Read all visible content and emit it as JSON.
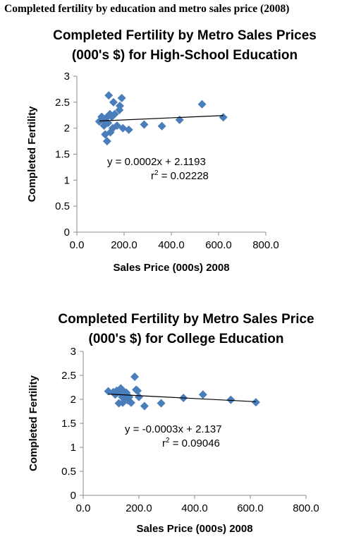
{
  "page_title": "Completed fertility by education and metro sales price (2008)",
  "chart_data": [
    {
      "type": "scatter",
      "title_lines": [
        "Completed Fertility by Metro Sales Prices",
        "(000's $) for High-School Education"
      ],
      "xlabel": "Sales Price (000s) 2008",
      "ylabel": "Completed Fertility",
      "xlim": [
        0,
        800
      ],
      "ylim": [
        0,
        3
      ],
      "x_ticks": [
        "0.0",
        "200.0",
        "400.0",
        "600.0",
        "800.0"
      ],
      "y_ticks": [
        "0",
        "0.5",
        "1",
        "1.5",
        "2",
        "2.5",
        "3"
      ],
      "marker_color": "#4a7ebb",
      "points": [
        {
          "x": 95,
          "y": 2.13
        },
        {
          "x": 105,
          "y": 2.22
        },
        {
          "x": 110,
          "y": 2.16
        },
        {
          "x": 115,
          "y": 2.05
        },
        {
          "x": 120,
          "y": 1.88
        },
        {
          "x": 125,
          "y": 2.2
        },
        {
          "x": 128,
          "y": 1.75
        },
        {
          "x": 132,
          "y": 2.1
        },
        {
          "x": 135,
          "y": 2.63
        },
        {
          "x": 140,
          "y": 2.27
        },
        {
          "x": 142,
          "y": 1.92
        },
        {
          "x": 148,
          "y": 2.22
        },
        {
          "x": 152,
          "y": 2.0
        },
        {
          "x": 155,
          "y": 2.5
        },
        {
          "x": 160,
          "y": 2.27
        },
        {
          "x": 170,
          "y": 2.05
        },
        {
          "x": 180,
          "y": 2.35
        },
        {
          "x": 182,
          "y": 2.43
        },
        {
          "x": 190,
          "y": 2.58
        },
        {
          "x": 195,
          "y": 2.0
        },
        {
          "x": 220,
          "y": 1.97
        },
        {
          "x": 285,
          "y": 2.07
        },
        {
          "x": 360,
          "y": 2.04
        },
        {
          "x": 435,
          "y": 2.16
        },
        {
          "x": 530,
          "y": 2.46
        },
        {
          "x": 620,
          "y": 2.21
        }
      ],
      "trendline": {
        "slope": 0.0002,
        "intercept": 2.1193,
        "x_range": [
          95,
          620
        ]
      },
      "equation_text": "y = 0.0002x + 2.1193",
      "r2_prefix": "r",
      "r2_exp": "2",
      "r2_value": " = 0.02228",
      "grid": false,
      "legend": "none"
    },
    {
      "type": "scatter",
      "title_lines": [
        "Completed Fertility by Metro Sales Price",
        "(000's $) for College Education"
      ],
      "xlabel": "Sales Price (000s) 2008",
      "ylabel": "Completed Fertility",
      "xlim": [
        0,
        800
      ],
      "ylim": [
        0,
        3
      ],
      "x_ticks": [
        "0.0",
        "200.0",
        "400.0",
        "600.0",
        "800.0"
      ],
      "y_ticks": [
        "0",
        "0.5",
        "1",
        "1.5",
        "2",
        "2.5",
        "3"
      ],
      "marker_color": "#4a7ebb",
      "points": [
        {
          "x": 90,
          "y": 2.17
        },
        {
          "x": 108,
          "y": 2.15
        },
        {
          "x": 115,
          "y": 2.1
        },
        {
          "x": 120,
          "y": 2.18
        },
        {
          "x": 125,
          "y": 2.15
        },
        {
          "x": 128,
          "y": 1.92
        },
        {
          "x": 132,
          "y": 2.2
        },
        {
          "x": 135,
          "y": 2.23
        },
        {
          "x": 138,
          "y": 2.12
        },
        {
          "x": 140,
          "y": 2.05
        },
        {
          "x": 142,
          "y": 1.93
        },
        {
          "x": 145,
          "y": 2.17
        },
        {
          "x": 150,
          "y": 2.03
        },
        {
          "x": 155,
          "y": 2.14
        },
        {
          "x": 160,
          "y": 1.98
        },
        {
          "x": 165,
          "y": 2.05
        },
        {
          "x": 172,
          "y": 1.93
        },
        {
          "x": 185,
          "y": 2.47
        },
        {
          "x": 190,
          "y": 2.2
        },
        {
          "x": 195,
          "y": 2.18
        },
        {
          "x": 200,
          "y": 2.05
        },
        {
          "x": 220,
          "y": 1.86
        },
        {
          "x": 280,
          "y": 1.92
        },
        {
          "x": 360,
          "y": 2.03
        },
        {
          "x": 430,
          "y": 2.1
        },
        {
          "x": 530,
          "y": 1.99
        },
        {
          "x": 620,
          "y": 1.94
        }
      ],
      "trendline": {
        "slope": -0.0003,
        "intercept": 2.137,
        "x_range": [
          90,
          620
        ]
      },
      "equation_text": "y = -0.0003x + 2.137",
      "r2_prefix": "r",
      "r2_exp": "2",
      "r2_value": " = 0.09046",
      "grid": false,
      "legend": "none"
    }
  ]
}
